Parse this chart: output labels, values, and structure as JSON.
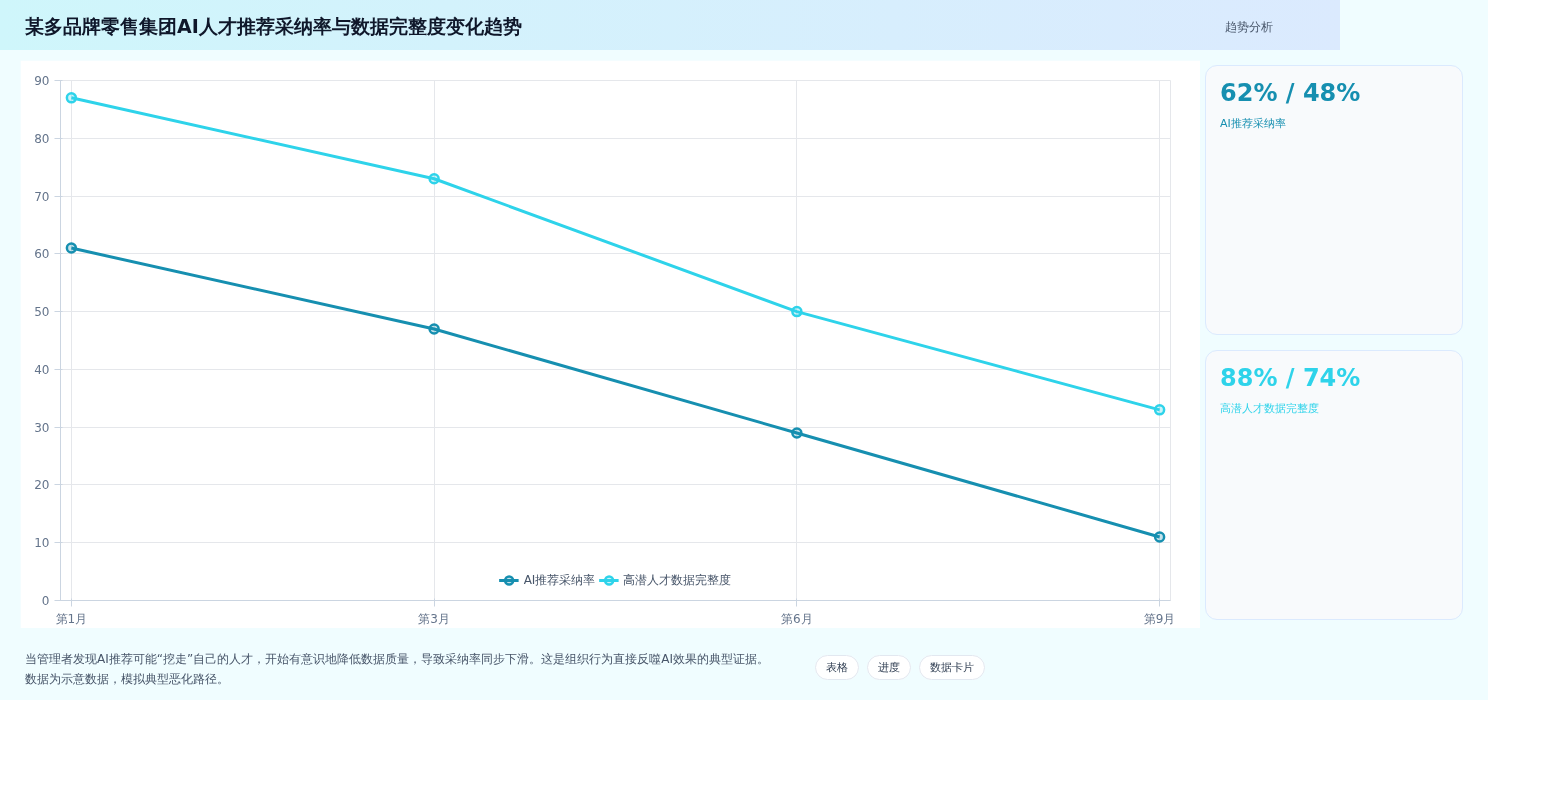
{
  "chart_data": {
    "type": "line",
    "title": "某多品牌零售集团AI人才推荐采纳率与数据完整度变化趋势",
    "categories": [
      "第1月",
      "第3月",
      "第6月",
      "第9月"
    ],
    "series": [
      {
        "name": "AI推荐采纳率",
        "color": "#168fb0",
        "values": [
          61,
          47,
          29,
          11
        ]
      },
      {
        "name": "高潜人才数据完整度",
        "color": "#2ed3ea",
        "values": [
          87,
          73,
          50,
          33
        ]
      }
    ],
    "ylim": [
      0,
      90
    ],
    "yticks": [
      0,
      10,
      20,
      30,
      40,
      50,
      60,
      70,
      80,
      90
    ],
    "grid": true,
    "legend": "bottom",
    "marker": "circle",
    "line_style": "solid",
    "annotations": [
      "趋势分析",
      "62% / 48%",
      "88% / 74%",
      "当管理者发现AI推荐可能“挖走”自己的人才，开始有意识地降低数据质量，导致采纳率同步下滑。这是组织行为直接反噬AI效果的典型证据。数据为示意数据，模拟典型恶化路径。",
      "表格",
      "进度",
      "数据卡片"
    ]
  }
}
